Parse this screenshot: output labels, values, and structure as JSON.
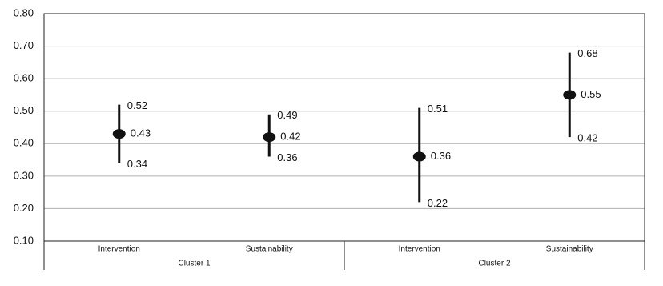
{
  "chart_data": {
    "type": "errorbar",
    "groups": [
      {
        "name": "Cluster 1",
        "categories": [
          "Intervention",
          "Sustainability"
        ]
      },
      {
        "name": "Cluster 2",
        "categories": [
          "Intervention",
          "Sustainability"
        ]
      }
    ],
    "values": [
      0.43,
      0.42,
      0.36,
      0.55
    ],
    "lower": [
      0.34,
      0.36,
      0.22,
      0.42
    ],
    "upper": [
      0.52,
      0.49,
      0.51,
      0.68
    ],
    "color": "#111111",
    "ylim": [
      0.1,
      0.8
    ],
    "yticks": [
      {
        "value": 0.1,
        "label": "0.10"
      },
      {
        "value": 0.2,
        "label": "0.20"
      },
      {
        "value": 0.3,
        "label": "0.30"
      },
      {
        "value": 0.4,
        "label": "0.40"
      },
      {
        "value": 0.5,
        "label": "0.50"
      },
      {
        "value": 0.6,
        "label": "0.60"
      },
      {
        "value": 0.7,
        "label": "0.70"
      },
      {
        "value": 0.8,
        "label": "0.80"
      }
    ],
    "grid": true
  }
}
